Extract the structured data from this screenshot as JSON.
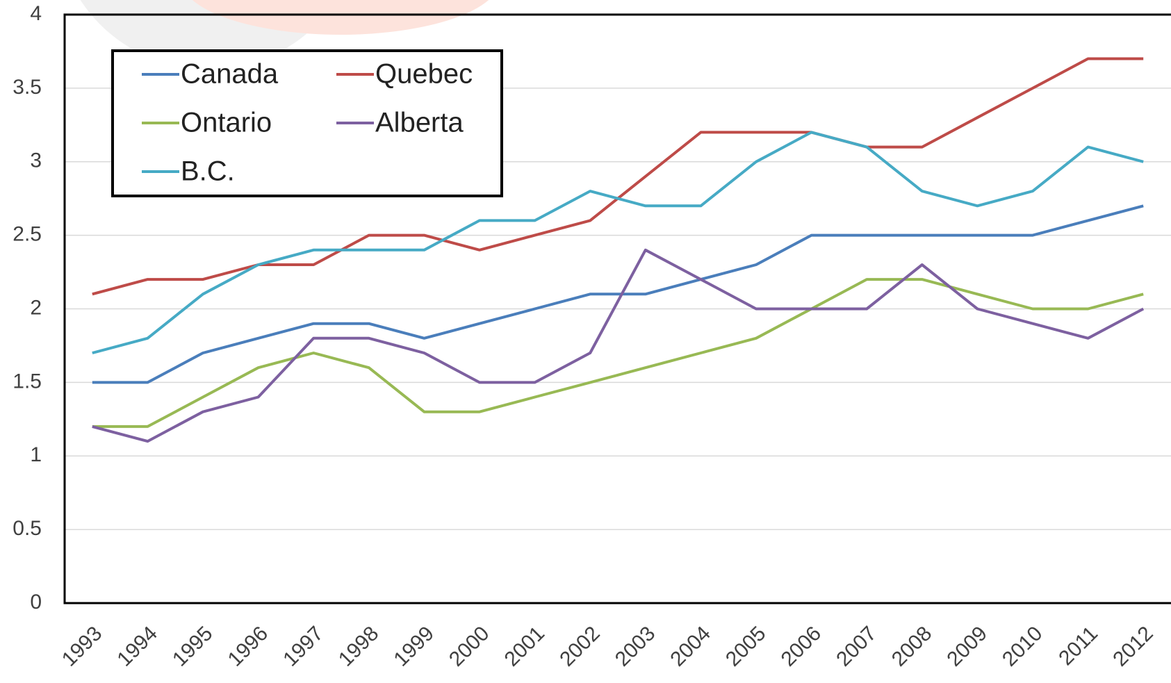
{
  "chart_data": {
    "type": "line",
    "categories": [
      "1993",
      "1994",
      "1995",
      "1996",
      "1997",
      "1998",
      "1999",
      "2000",
      "2001",
      "2002",
      "2003",
      "2004",
      "2005",
      "2006",
      "2007",
      "2008",
      "2009",
      "2010",
      "2011",
      "2012"
    ],
    "series": [
      {
        "name": "Canada",
        "color": "#4a7ebb",
        "values": [
          1.5,
          1.5,
          1.7,
          1.8,
          1.9,
          1.9,
          1.8,
          1.9,
          2.0,
          2.1,
          2.1,
          2.2,
          2.3,
          2.5,
          2.5,
          2.5,
          2.5,
          2.5,
          2.6,
          2.7
        ]
      },
      {
        "name": "Quebec",
        "color": "#be4b48",
        "values": [
          2.1,
          2.2,
          2.2,
          2.3,
          2.3,
          2.5,
          2.5,
          2.4,
          2.5,
          2.6,
          2.9,
          3.2,
          3.2,
          3.2,
          3.1,
          3.1,
          3.3,
          3.5,
          3.7,
          3.7
        ]
      },
      {
        "name": "Ontario",
        "color": "#98b954",
        "values": [
          1.2,
          1.2,
          1.4,
          1.6,
          1.7,
          1.6,
          1.3,
          1.3,
          1.4,
          1.5,
          1.6,
          1.7,
          1.8,
          2.0,
          2.2,
          2.2,
          2.1,
          2.0,
          2.0,
          2.1
        ]
      },
      {
        "name": "Alberta",
        "color": "#7d60a0",
        "values": [
          1.2,
          1.1,
          1.3,
          1.4,
          1.8,
          1.8,
          1.7,
          1.5,
          1.5,
          1.7,
          2.4,
          2.2,
          2.0,
          2.0,
          2.0,
          2.3,
          2.0,
          1.9,
          1.8,
          2.0
        ]
      },
      {
        "name": "B.C.",
        "color": "#46aac5",
        "values": [
          1.7,
          1.8,
          2.1,
          2.3,
          2.4,
          2.4,
          2.4,
          2.6,
          2.6,
          2.8,
          2.7,
          2.7,
          3.0,
          3.2,
          3.1,
          2.8,
          2.7,
          2.8,
          3.1,
          3.0
        ]
      }
    ],
    "ylim": [
      0,
      4
    ],
    "yticks": [
      0,
      {
        "value": 0.5,
        "label": "0.5"
      },
      1,
      {
        "value": 1.5,
        "label": "1.5"
      },
      2,
      {
        "value": 2.5,
        "label": "2.5"
      },
      3,
      {
        "value": 3.5,
        "label": "3.5"
      },
      4
    ],
    "grid": true,
    "legend": "upper left"
  }
}
